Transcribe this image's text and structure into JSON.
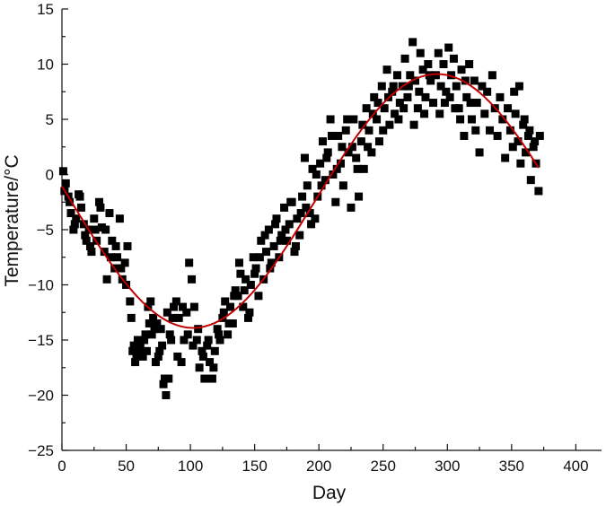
{
  "chart_data": {
    "type": "scatter",
    "title": "",
    "xlabel": "Day",
    "ylabel": "Temperature/°C",
    "xlim": [
      0,
      420
    ],
    "ylim": [
      -25,
      15
    ],
    "xticks": [
      0,
      50,
      100,
      150,
      200,
      250,
      300,
      350,
      400
    ],
    "yticks": [
      -25,
      -20,
      -15,
      -10,
      -5,
      0,
      5,
      10,
      15
    ],
    "grid": false,
    "legend": "none",
    "colors": {
      "points": "#000000",
      "fit_line": "#c00000"
    },
    "series": [
      {
        "kind": "scatter",
        "marker": "square",
        "points": [
          [
            1,
            0.3
          ],
          [
            3,
            -0.8
          ],
          [
            5,
            -2.0
          ],
          [
            7,
            -3.5
          ],
          [
            9,
            -5.0
          ],
          [
            11,
            -4.0
          ],
          [
            13,
            -1.8
          ],
          [
            15,
            -3.0
          ],
          [
            17,
            -4.5
          ],
          [
            19,
            -6.0
          ],
          [
            21,
            -5.0
          ],
          [
            23,
            -7.0
          ],
          [
            25,
            -4.0
          ],
          [
            27,
            -6.0
          ],
          [
            29,
            -2.5
          ],
          [
            31,
            -4.8
          ],
          [
            33,
            -7.0
          ],
          [
            35,
            -9.5
          ],
          [
            37,
            -3.5
          ],
          [
            39,
            -6.0
          ],
          [
            41,
            -8.5
          ],
          [
            43,
            -7.5
          ],
          [
            45,
            -4.0
          ],
          [
            47,
            -9.5
          ],
          [
            49,
            -8.0
          ],
          [
            51,
            -6.5
          ],
          [
            53,
            -11.5
          ],
          [
            55,
            -16.0
          ],
          [
            57,
            -17.0
          ],
          [
            59,
            -15.0
          ],
          [
            61,
            -15.5
          ],
          [
            63,
            -16.5
          ],
          [
            65,
            -14.5
          ],
          [
            67,
            -12.0
          ],
          [
            69,
            -11.5
          ],
          [
            71,
            -13.0
          ],
          [
            73,
            -17.0
          ],
          [
            75,
            -16.5
          ],
          [
            77,
            -14.0
          ],
          [
            79,
            -19.0
          ],
          [
            81,
            -20.0
          ],
          [
            83,
            -18.5
          ],
          [
            85,
            -15.0
          ],
          [
            87,
            -12.0
          ],
          [
            89,
            -11.5
          ],
          [
            91,
            -13.0
          ],
          [
            93,
            -17.0
          ],
          [
            95,
            -15.0
          ],
          [
            97,
            -12.5
          ],
          [
            99,
            -8.0
          ],
          [
            101,
            -9.5
          ],
          [
            103,
            -12.0
          ],
          [
            105,
            -15.0
          ],
          [
            107,
            -17.5
          ],
          [
            109,
            -16.0
          ],
          [
            111,
            -18.5
          ],
          [
            113,
            -15.5
          ],
          [
            115,
            -17.0
          ],
          [
            117,
            -18.5
          ],
          [
            119,
            -16.0
          ],
          [
            121,
            -14.0
          ],
          [
            123,
            -15.0
          ],
          [
            125,
            -13.0
          ],
          [
            127,
            -11.5
          ],
          [
            129,
            -14.5
          ],
          [
            131,
            -12.0
          ],
          [
            133,
            -13.5
          ],
          [
            135,
            -10.5
          ],
          [
            137,
            -11.0
          ],
          [
            139,
            -9.0
          ],
          [
            141,
            -12.0
          ],
          [
            143,
            -9.5
          ],
          [
            145,
            -13.0
          ],
          [
            147,
            -10.0
          ],
          [
            149,
            -7.5
          ],
          [
            151,
            -8.5
          ],
          [
            153,
            -11.0
          ],
          [
            155,
            -6.0
          ],
          [
            157,
            -9.5
          ],
          [
            159,
            -7.0
          ],
          [
            161,
            -5.0
          ],
          [
            163,
            -8.0
          ],
          [
            165,
            -6.5
          ],
          [
            167,
            -4.0
          ],
          [
            169,
            -7.5
          ],
          [
            171,
            -5.5
          ],
          [
            173,
            -3.0
          ],
          [
            175,
            -6.0
          ],
          [
            177,
            -4.5
          ],
          [
            179,
            -2.5
          ],
          [
            181,
            -7.0
          ],
          [
            183,
            -4.0
          ],
          [
            185,
            -5.5
          ],
          [
            187,
            -2.0
          ],
          [
            189,
            1.5
          ],
          [
            191,
            -1.0
          ],
          [
            193,
            -3.5
          ],
          [
            195,
            0.5
          ],
          [
            197,
            -4.0
          ],
          [
            199,
            -2.0
          ],
          [
            201,
            1.0
          ],
          [
            203,
            3.0
          ],
          [
            205,
            -0.5
          ],
          [
            207,
            2.0
          ],
          [
            209,
            5.0
          ],
          [
            211,
            0.0
          ],
          [
            213,
            -2.5
          ],
          [
            215,
            3.5
          ],
          [
            217,
            1.0
          ],
          [
            219,
            -1.0
          ],
          [
            221,
            4.0
          ],
          [
            223,
            2.0
          ],
          [
            225,
            -3.0
          ],
          [
            227,
            5.0
          ],
          [
            229,
            1.5
          ],
          [
            231,
            -2.0
          ],
          [
            233,
            3.0
          ],
          [
            235,
            0.5
          ],
          [
            237,
            6.0
          ],
          [
            239,
            4.0
          ],
          [
            241,
            2.0
          ],
          [
            243,
            7.0
          ],
          [
            245,
            5.0
          ],
          [
            247,
            3.0
          ],
          [
            249,
            8.0
          ],
          [
            251,
            6.0
          ],
          [
            253,
            9.5
          ],
          [
            255,
            4.5
          ],
          [
            257,
            7.5
          ],
          [
            259,
            5.5
          ],
          [
            261,
            9.0
          ],
          [
            263,
            6.5
          ],
          [
            265,
            8.0
          ],
          [
            267,
            10.5
          ],
          [
            269,
            7.0
          ],
          [
            271,
            9.0
          ],
          [
            273,
            12.0
          ],
          [
            275,
            8.5
          ],
          [
            277,
            6.0
          ],
          [
            279,
            11.0
          ],
          [
            281,
            9.5
          ],
          [
            283,
            7.0
          ],
          [
            285,
            10.0
          ],
          [
            287,
            8.5
          ],
          [
            289,
            6.5
          ],
          [
            291,
            9.0
          ],
          [
            293,
            11.0
          ],
          [
            295,
            8.0
          ],
          [
            297,
            10.0
          ],
          [
            299,
            7.5
          ],
          [
            301,
            11.5
          ],
          [
            303,
            9.0
          ],
          [
            305,
            10.5
          ],
          [
            307,
            8.0
          ],
          [
            309,
            6.0
          ],
          [
            311,
            9.5
          ],
          [
            313,
            3.5
          ],
          [
            315,
            7.0
          ],
          [
            317,
            10.0
          ],
          [
            319,
            5.0
          ],
          [
            321,
            8.5
          ],
          [
            323,
            6.5
          ],
          [
            325,
            2.0
          ],
          [
            327,
            8.0
          ],
          [
            329,
            5.5
          ],
          [
            331,
            7.5
          ],
          [
            333,
            4.0
          ],
          [
            335,
            9.0
          ],
          [
            337,
            6.0
          ],
          [
            339,
            3.5
          ],
          [
            341,
            7.0
          ],
          [
            343,
            5.0
          ],
          [
            345,
            1.5
          ],
          [
            347,
            6.0
          ],
          [
            349,
            4.0
          ],
          [
            351,
            2.5
          ],
          [
            353,
            5.5
          ],
          [
            355,
            3.0
          ],
          [
            357,
            1.0
          ],
          [
            359,
            4.5
          ],
          [
            361,
            2.0
          ],
          [
            363,
            3.5
          ],
          [
            365,
            -0.5
          ],
          [
            367,
            2.5
          ],
          [
            369,
            1.0
          ],
          [
            371,
            -1.5
          ],
          [
            352,
            7.5
          ],
          [
            356,
            8.0
          ],
          [
            360,
            5.0
          ],
          [
            364,
            4.0
          ],
          [
            368,
            3.0
          ],
          [
            372,
            3.5
          ],
          [
            294,
            5.5
          ],
          [
            298,
            6.5
          ],
          [
            302,
            7.0
          ],
          [
            306,
            6.0
          ],
          [
            310,
            5.0
          ],
          [
            314,
            8.5
          ],
          [
            318,
            6.5
          ],
          [
            322,
            4.0
          ],
          [
            258,
            8.0
          ],
          [
            262,
            5.0
          ],
          [
            266,
            6.0
          ],
          [
            270,
            8.0
          ],
          [
            274,
            4.5
          ],
          [
            278,
            7.5
          ],
          [
            282,
            5.5
          ],
          [
            286,
            9.0
          ],
          [
            226,
            2.5
          ],
          [
            230,
            0.5
          ],
          [
            234,
            4.5
          ],
          [
            238,
            2.5
          ],
          [
            242,
            5.5
          ],
          [
            246,
            6.5
          ],
          [
            250,
            4.0
          ],
          [
            254,
            7.0
          ],
          [
            194,
            -4.5
          ],
          [
            198,
            0.0
          ],
          [
            202,
            -1.0
          ],
          [
            206,
            1.5
          ],
          [
            210,
            3.5
          ],
          [
            214,
            0.5
          ],
          [
            218,
            2.5
          ],
          [
            222,
            5.0
          ],
          [
            162,
            -8.5
          ],
          [
            166,
            -4.5
          ],
          [
            170,
            -6.0
          ],
          [
            174,
            -5.0
          ],
          [
            178,
            -2.5
          ],
          [
            182,
            -6.5
          ],
          [
            186,
            -3.5
          ],
          [
            190,
            -3.0
          ],
          [
            130,
            -13.5
          ],
          [
            134,
            -11.0
          ],
          [
            138,
            -8.0
          ],
          [
            142,
            -10.5
          ],
          [
            146,
            -12.5
          ],
          [
            150,
            -9.0
          ],
          [
            154,
            -7.5
          ],
          [
            158,
            -5.5
          ],
          [
            98,
            -14.5
          ],
          [
            102,
            -15.5
          ],
          [
            106,
            -14.0
          ],
          [
            110,
            -16.5
          ],
          [
            114,
            -15.0
          ],
          [
            118,
            -17.5
          ],
          [
            122,
            -14.5
          ],
          [
            126,
            -12.5
          ],
          [
            66,
            -16.0
          ],
          [
            70,
            -14.5
          ],
          [
            74,
            -13.5
          ],
          [
            78,
            -15.5
          ],
          [
            82,
            -12.5
          ],
          [
            86,
            -13.0
          ],
          [
            90,
            -16.5
          ],
          [
            94,
            -12.0
          ],
          [
            34,
            -5.0
          ],
          [
            38,
            -7.5
          ],
          [
            42,
            -6.5
          ],
          [
            46,
            -8.5
          ],
          [
            50,
            -10.0
          ],
          [
            54,
            -13.0
          ],
          [
            58,
            -16.5
          ],
          [
            62,
            -15.0
          ],
          [
            2,
            -1.5
          ],
          [
            6,
            -2.5
          ],
          [
            10,
            -4.5
          ],
          [
            14,
            -2.0
          ],
          [
            18,
            -5.5
          ],
          [
            22,
            -6.5
          ],
          [
            26,
            -5.0
          ],
          [
            30,
            -3.0
          ],
          [
            56,
            -15.5
          ],
          [
            60,
            -16.0
          ],
          [
            64,
            -15.0
          ],
          [
            68,
            -13.5
          ],
          [
            72,
            -14.0
          ],
          [
            76,
            -16.0
          ],
          [
            80,
            -18.5
          ],
          [
            84,
            -14.5
          ]
        ]
      },
      {
        "kind": "fit-curve",
        "function": "sine",
        "mean": -2.4,
        "amplitude": 11.5,
        "period_days": 380,
        "peak_day": 292,
        "x_range": [
          0,
          371
        ]
      }
    ]
  }
}
